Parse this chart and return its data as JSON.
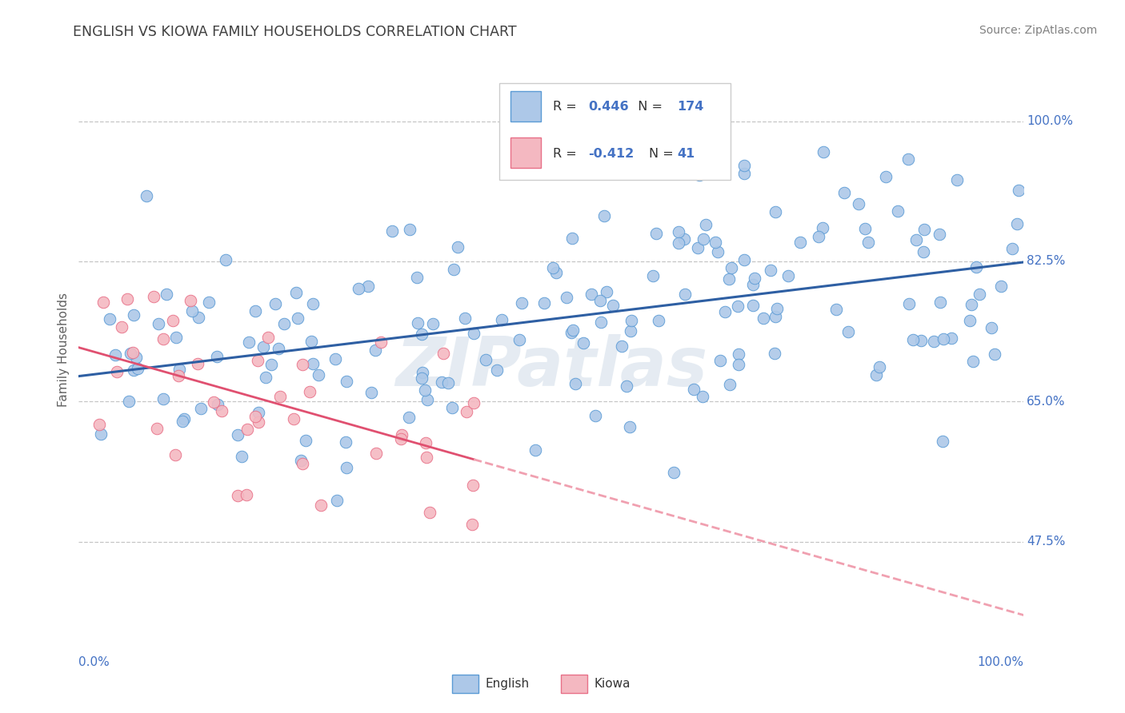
{
  "title": "ENGLISH VS KIOWA FAMILY HOUSEHOLDS CORRELATION CHART",
  "source_text": "Source: ZipAtlas.com",
  "ylabel": "Family Households",
  "xlim": [
    0.0,
    1.0
  ],
  "ylim": [
    0.35,
    1.08
  ],
  "bg_color": "#ffffff",
  "english_dot_color": "#adc8e8",
  "english_edge_color": "#5b9bd5",
  "kiowa_dot_color": "#f4b8c1",
  "kiowa_edge_color": "#e87088",
  "title_color": "#404040",
  "axis_label_color": "#4472c4",
  "source_color": "#808080",
  "ylabel_color": "#606060",
  "grid_color": "#c0c0c0",
  "reg_english_color": "#2e5fa3",
  "reg_kiowa_solid_color": "#e05070",
  "reg_kiowa_dash_color": "#f0a0b0",
  "legend_R_english": "0.446",
  "legend_N_english": "174",
  "legend_R_kiowa": "-0.412",
  "legend_N_kiowa": "41",
  "watermark": "ZIPatlas",
  "ytick_positions": [
    0.475,
    0.65,
    0.825,
    1.0
  ],
  "ytick_labels": [
    "47.5%",
    "65.0%",
    "82.5%",
    "100.0%"
  ],
  "xtick_positions": [
    0.0,
    1.0
  ],
  "xtick_labels": [
    "0.0%",
    "100.0%"
  ],
  "english_seed": 101,
  "kiowa_seed": 202,
  "english_N": 174,
  "kiowa_N": 41,
  "english_R": 0.446,
  "kiowa_R": -0.412
}
